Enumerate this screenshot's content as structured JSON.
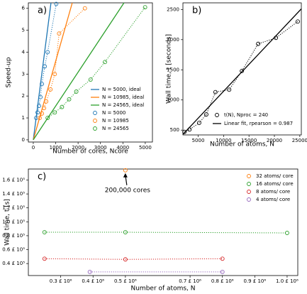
{
  "chart_data": [
    {
      "type": "line",
      "panel_label": "a)",
      "xlabel": "Number of cores, Ncore",
      "ylabel": "Speed-up",
      "xlim": [
        -220,
        5320
      ],
      "ylim": [
        -0.1,
        6.25
      ],
      "xticks": [
        0,
        1000,
        2000,
        3000,
        4000,
        5000
      ],
      "yticks": [
        0,
        1,
        2,
        3,
        4,
        5,
        6
      ],
      "legend": "lower right",
      "series": [
        {
          "name": "N = 5000, ideal",
          "color": "#1f77b4",
          "line": "solid",
          "x": [
            0,
            790
          ],
          "values": [
            0,
            6.25
          ]
        },
        {
          "name": "N = 10985, ideal",
          "color": "#ff7f0e",
          "line": "solid",
          "x": [
            0,
            1740
          ],
          "values": [
            0,
            6.25
          ]
        },
        {
          "name": "N = 24565, ideal",
          "color": "#2ca02c",
          "line": "solid",
          "x": [
            0,
            4050
          ],
          "values": [
            0,
            6.25
          ]
        },
        {
          "name": "N = 5000",
          "color": "#1f77b4",
          "line": "dotted",
          "marker": "circle",
          "x": [
            128,
            192,
            256,
            320,
            384,
            512,
            640,
            1024
          ],
          "values": [
            1,
            1.25,
            1.55,
            1.95,
            2.55,
            3.35,
            4.0,
            6.2
          ]
        },
        {
          "name": "N = 10985",
          "color": "#ff7f0e",
          "line": "dotted",
          "marker": "circle",
          "x": [
            288,
            384,
            480,
            576,
            768,
            960,
            1152,
            2304
          ],
          "values": [
            1,
            1.2,
            1.45,
            1.75,
            2.3,
            3.0,
            4.85,
            6.0
          ]
        },
        {
          "name": "N = 24565",
          "color": "#2ca02c",
          "line": "dotted",
          "marker": "circle",
          "x": [
            640,
            960,
            1280,
            1600,
            1920,
            2560,
            3200,
            4992
          ],
          "values": [
            1,
            1.25,
            1.5,
            1.85,
            2.2,
            2.75,
            3.55,
            6.05
          ]
        }
      ]
    },
    {
      "type": "line",
      "panel_label": "b)",
      "xlabel": "Number of atoms, N",
      "ylabel": "Wall time, t [seconds]",
      "xlim": [
        2000,
        25300
      ],
      "ylim": [
        420,
        2610
      ],
      "xticks": [
        5000,
        10000,
        15000,
        20000,
        25000
      ],
      "yticks": [
        500,
        1000,
        1500,
        2000,
        2500
      ],
      "legend": "lower right",
      "series": [
        {
          "name": "t(N), Nproc = 240",
          "color": "#000000",
          "line": "dotted",
          "marker": "circle",
          "x": [
            2300,
            3300,
            5200,
            6600,
            8400,
            11100,
            13600,
            16800,
            20300,
            24600
          ],
          "values": [
            470,
            510,
            620,
            760,
            1130,
            1170,
            1480,
            1930,
            2030,
            2300
          ]
        },
        {
          "name": "Linear fit, rpearson = 0.987",
          "color": "#000000",
          "line": "solid",
          "x": [
            2000,
            25300
          ],
          "values": [
            430,
            2510
          ]
        }
      ]
    },
    {
      "type": "scatter",
      "panel_label": "c)",
      "xlabel": "Number of atoms, N",
      "ylabel": "Wall time, t [s]",
      "annotation": "200,000 cores",
      "xlim": [
        200000,
        1033000
      ],
      "ylim": [
        22800,
        175800
      ],
      "xticks": [
        {
          "value": 300000,
          "label": "0.3 £ 10⁶"
        },
        {
          "value": 400000,
          "label": "0.4 £ 10⁶"
        },
        {
          "value": 500000,
          "label": "0.5 £ 10⁶"
        },
        {
          "value": 700000,
          "label": "0.7 £ 10⁶"
        },
        {
          "value": 800000,
          "label": "0.8 £ 10⁶"
        },
        {
          "value": 900000,
          "label": "0.9 £ 10⁶"
        },
        {
          "value": 1000000,
          "label": "1.0 £ 10⁶"
        }
      ],
      "yticks": [
        {
          "value": 40000,
          "label": "0.4 £ 10⁵"
        },
        {
          "value": 60000,
          "label": "0.6 £ 10⁵"
        },
        {
          "value": 80000,
          "label": "0.8 £ 10⁵"
        },
        {
          "value": 100000,
          "label": "1.0 £ 10⁵"
        },
        {
          "value": 120000,
          "label": "1.2 £ 10⁵"
        },
        {
          "value": 140000,
          "label": "1.4 £ 10⁵"
        },
        {
          "value": 160000,
          "label": "1.6 £ 10⁵"
        }
      ],
      "legend": "upper right",
      "series": [
        {
          "name": "32 atoms/ core",
          "color": "#ff7f0e",
          "line": "dotted",
          "marker": "circle",
          "x": [
            500000
          ],
          "values": [
            174000
          ]
        },
        {
          "name": "16 atoms/ core",
          "color": "#2ca02c",
          "line": "dotted",
          "marker": "circle",
          "x": [
            250000,
            500000,
            1000000
          ],
          "values": [
            85000,
            85000,
            84000
          ]
        },
        {
          "name": "8 atoms/ core",
          "color": "#d62728",
          "line": "dotted",
          "marker": "circle",
          "x": [
            250000,
            500000,
            800000
          ],
          "values": [
            47000,
            46000,
            47000
          ]
        },
        {
          "name": "4 atoms/ core",
          "color": "#9467bd",
          "line": "dotted",
          "marker": "circle",
          "x": [
            390000,
            800000
          ],
          "values": [
            28000,
            28000
          ]
        }
      ]
    }
  ]
}
